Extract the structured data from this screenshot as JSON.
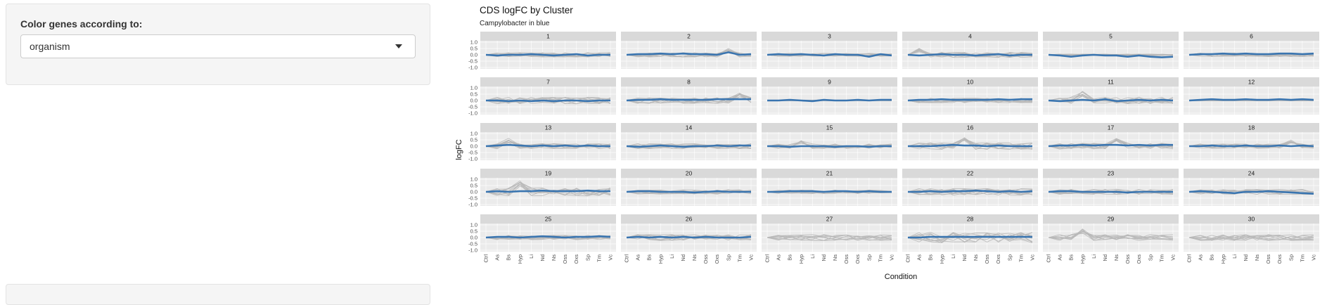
{
  "sidebar": {
    "label": "Color genes according to:",
    "select_value": "organism"
  },
  "chart_data": {
    "type": "line",
    "title": "CDS logFC by Cluster",
    "subtitle": "Campylobacter in blue",
    "xlabel": "Condition",
    "ylabel": "logFC",
    "ylim": [
      -1.0,
      1.0
    ],
    "yticks": [
      "1.0",
      "0.5",
      "0.0",
      "-0.5",
      "-1.0"
    ],
    "categories": [
      "Ctrl",
      "As",
      "Bs",
      "Hyp",
      "Li",
      "Nd",
      "Ns",
      "Oss",
      "Oxs",
      "Sp",
      "Tm",
      "Vc"
    ],
    "facet_layout": "5 rows x 6 columns",
    "grid": true,
    "colors": {
      "highlight": "#3a75b0",
      "other": "#b8b8b8",
      "strip": "#d9d9d9",
      "panel": "#ebebeb"
    },
    "panels": [
      {
        "label": "1",
        "blue": [
          0.0,
          -0.05,
          0.0,
          0.0,
          0.05,
          0.0,
          -0.05,
          0.0,
          0.05,
          -0.05,
          0.0,
          0.0
        ],
        "grey_spread": 0.3,
        "grey_peak": null
      },
      {
        "label": "2",
        "blue": [
          0.0,
          0.05,
          0.05,
          0.1,
          0.05,
          0.1,
          0.05,
          0.05,
          0.0,
          0.2,
          0.0,
          0.05
        ],
        "grey_spread": 0.3,
        "grey_peak": 9
      },
      {
        "label": "3",
        "blue": [
          0.0,
          0.05,
          0.0,
          0.05,
          0.0,
          -0.05,
          0.05,
          0.0,
          0.0,
          -0.15,
          0.05,
          -0.05
        ],
        "grey_spread": 0.2,
        "grey_peak": null
      },
      {
        "label": "4",
        "blue": [
          0.0,
          -0.05,
          0.0,
          0.05,
          0.0,
          0.0,
          -0.05,
          0.0,
          0.05,
          -0.05,
          0.0,
          0.0
        ],
        "grey_spread": 0.35,
        "grey_peak": 1
      },
      {
        "label": "5",
        "blue": [
          0.0,
          -0.05,
          -0.15,
          -0.05,
          0.0,
          -0.05,
          -0.05,
          -0.15,
          -0.05,
          -0.15,
          -0.2,
          -0.15
        ],
        "grey_spread": 0.1,
        "grey_peak": null
      },
      {
        "label": "6",
        "blue": [
          0.0,
          0.05,
          0.05,
          0.1,
          0.05,
          0.1,
          0.05,
          0.05,
          0.1,
          0.1,
          0.05,
          0.1
        ],
        "grey_spread": 0.25,
        "grey_peak": null
      },
      {
        "label": "7",
        "blue": [
          0.0,
          0.0,
          -0.05,
          0.0,
          -0.05,
          0.0,
          -0.05,
          0.0,
          0.0,
          -0.05,
          0.0,
          0.0
        ],
        "grey_spread": 0.45,
        "grey_peak": null
      },
      {
        "label": "8",
        "blue": [
          0.0,
          0.05,
          0.05,
          0.1,
          0.05,
          0.05,
          0.05,
          0.05,
          0.1,
          0.1,
          0.1,
          0.1
        ],
        "grey_spread": 0.4,
        "grey_peak": 10
      },
      {
        "label": "9",
        "blue": [
          0.0,
          0.0,
          0.05,
          0.0,
          -0.05,
          0.05,
          0.0,
          0.0,
          0.05,
          0.0,
          0.05,
          0.05
        ],
        "grey_spread": 0.05,
        "grey_peak": null
      },
      {
        "label": "10",
        "blue": [
          0.0,
          0.05,
          0.05,
          0.1,
          0.05,
          0.05,
          0.05,
          0.05,
          0.1,
          0.05,
          0.1,
          0.1
        ],
        "grey_spread": 0.3,
        "grey_peak": null
      },
      {
        "label": "11",
        "blue": [
          0.0,
          -0.05,
          0.0,
          0.05,
          0.0,
          0.1,
          -0.05,
          0.0,
          0.05,
          0.0,
          0.05,
          0.0
        ],
        "grey_spread": 0.45,
        "grey_peak": 3
      },
      {
        "label": "12",
        "blue": [
          0.0,
          0.05,
          0.1,
          0.05,
          0.05,
          0.1,
          0.05,
          0.05,
          0.1,
          0.05,
          0.1,
          0.05
        ],
        "grey_spread": 0.05,
        "grey_peak": null
      },
      {
        "label": "13",
        "blue": [
          0.0,
          0.05,
          0.1,
          0.05,
          0.0,
          0.05,
          0.0,
          0.05,
          0.0,
          0.05,
          0.0,
          0.0
        ],
        "grey_spread": 0.35,
        "grey_peak": 2
      },
      {
        "label": "14",
        "blue": [
          0.0,
          -0.05,
          0.0,
          0.05,
          0.0,
          -0.05,
          0.0,
          0.0,
          0.05,
          0.0,
          0.05,
          0.05
        ],
        "grey_spread": 0.35,
        "grey_peak": null
      },
      {
        "label": "15",
        "blue": [
          0.0,
          0.0,
          -0.05,
          0.0,
          0.0,
          0.0,
          -0.05,
          0.0,
          0.0,
          -0.05,
          0.0,
          0.0
        ],
        "grey_spread": 0.3,
        "grey_peak": 3
      },
      {
        "label": "16",
        "blue": [
          0.0,
          0.0,
          0.0,
          0.05,
          0.1,
          0.05,
          0.05,
          0.0,
          0.05,
          0.0,
          0.0,
          0.0
        ],
        "grey_spread": 0.45,
        "grey_peak": 5
      },
      {
        "label": "17",
        "blue": [
          0.0,
          0.05,
          0.05,
          0.1,
          0.05,
          0.1,
          0.1,
          0.05,
          0.1,
          0.05,
          0.1,
          0.1
        ],
        "grey_spread": 0.4,
        "grey_peak": 6
      },
      {
        "label": "18",
        "blue": [
          0.0,
          0.0,
          0.05,
          0.0,
          0.0,
          0.05,
          0.0,
          0.0,
          0.05,
          0.0,
          0.05,
          0.0
        ],
        "grey_spread": 0.3,
        "grey_peak": 9
      },
      {
        "label": "19",
        "blue": [
          0.0,
          0.05,
          0.0,
          0.05,
          0.05,
          0.1,
          0.05,
          0.05,
          0.05,
          0.1,
          0.05,
          0.05
        ],
        "grey_spread": 0.55,
        "grey_peak": 3
      },
      {
        "label": "20",
        "blue": [
          0.0,
          0.05,
          0.05,
          0.0,
          0.0,
          0.0,
          -0.05,
          0.0,
          0.05,
          0.0,
          0.0,
          0.0
        ],
        "grey_spread": 0.3,
        "grey_peak": null
      },
      {
        "label": "21",
        "blue": [
          0.0,
          0.0,
          0.05,
          0.05,
          0.05,
          0.0,
          0.05,
          0.05,
          0.0,
          0.05,
          0.0,
          0.0
        ],
        "grey_spread": 0.25,
        "grey_peak": null
      },
      {
        "label": "22",
        "blue": [
          0.0,
          0.0,
          0.05,
          0.0,
          0.05,
          0.05,
          0.1,
          0.05,
          0.0,
          0.05,
          0.0,
          0.05
        ],
        "grey_spread": 0.45,
        "grey_peak": null
      },
      {
        "label": "23",
        "blue": [
          0.0,
          0.05,
          0.05,
          0.0,
          0.0,
          0.0,
          0.0,
          -0.05,
          0.0,
          0.0,
          0.0,
          0.0
        ],
        "grey_spread": 0.35,
        "grey_peak": null
      },
      {
        "label": "24",
        "blue": [
          0.0,
          0.05,
          0.0,
          -0.05,
          -0.1,
          0.0,
          0.0,
          0.05,
          0.0,
          -0.05,
          -0.1,
          -0.15
        ],
        "grey_spread": 0.35,
        "grey_peak": null
      },
      {
        "label": "25",
        "blue": [
          0.0,
          0.05,
          0.05,
          0.0,
          0.05,
          0.1,
          0.05,
          0.0,
          0.05,
          0.05,
          0.1,
          0.05
        ],
        "grey_spread": 0.3,
        "grey_peak": null
      },
      {
        "label": "26",
        "blue": [
          0.0,
          0.05,
          0.0,
          0.05,
          0.0,
          0.05,
          0.0,
          0.05,
          0.0,
          0.0,
          0.0,
          0.05
        ],
        "grey_spread": 0.4,
        "grey_peak": null
      },
      {
        "label": "27",
        "blue": null,
        "grey_spread": 0.4,
        "grey_peak": null
      },
      {
        "label": "28",
        "blue": [
          0.0,
          0.0,
          0.05,
          0.05,
          0.05,
          0.05,
          0.05,
          0.05,
          0.05,
          0.05,
          0.05,
          0.05
        ],
        "grey_spread": 0.7,
        "grey_peak": null
      },
      {
        "label": "29",
        "blue": null,
        "grey_spread": 0.4,
        "grey_peak": 3
      },
      {
        "label": "30",
        "blue": null,
        "grey_spread": 0.4,
        "grey_peak": null
      }
    ]
  }
}
